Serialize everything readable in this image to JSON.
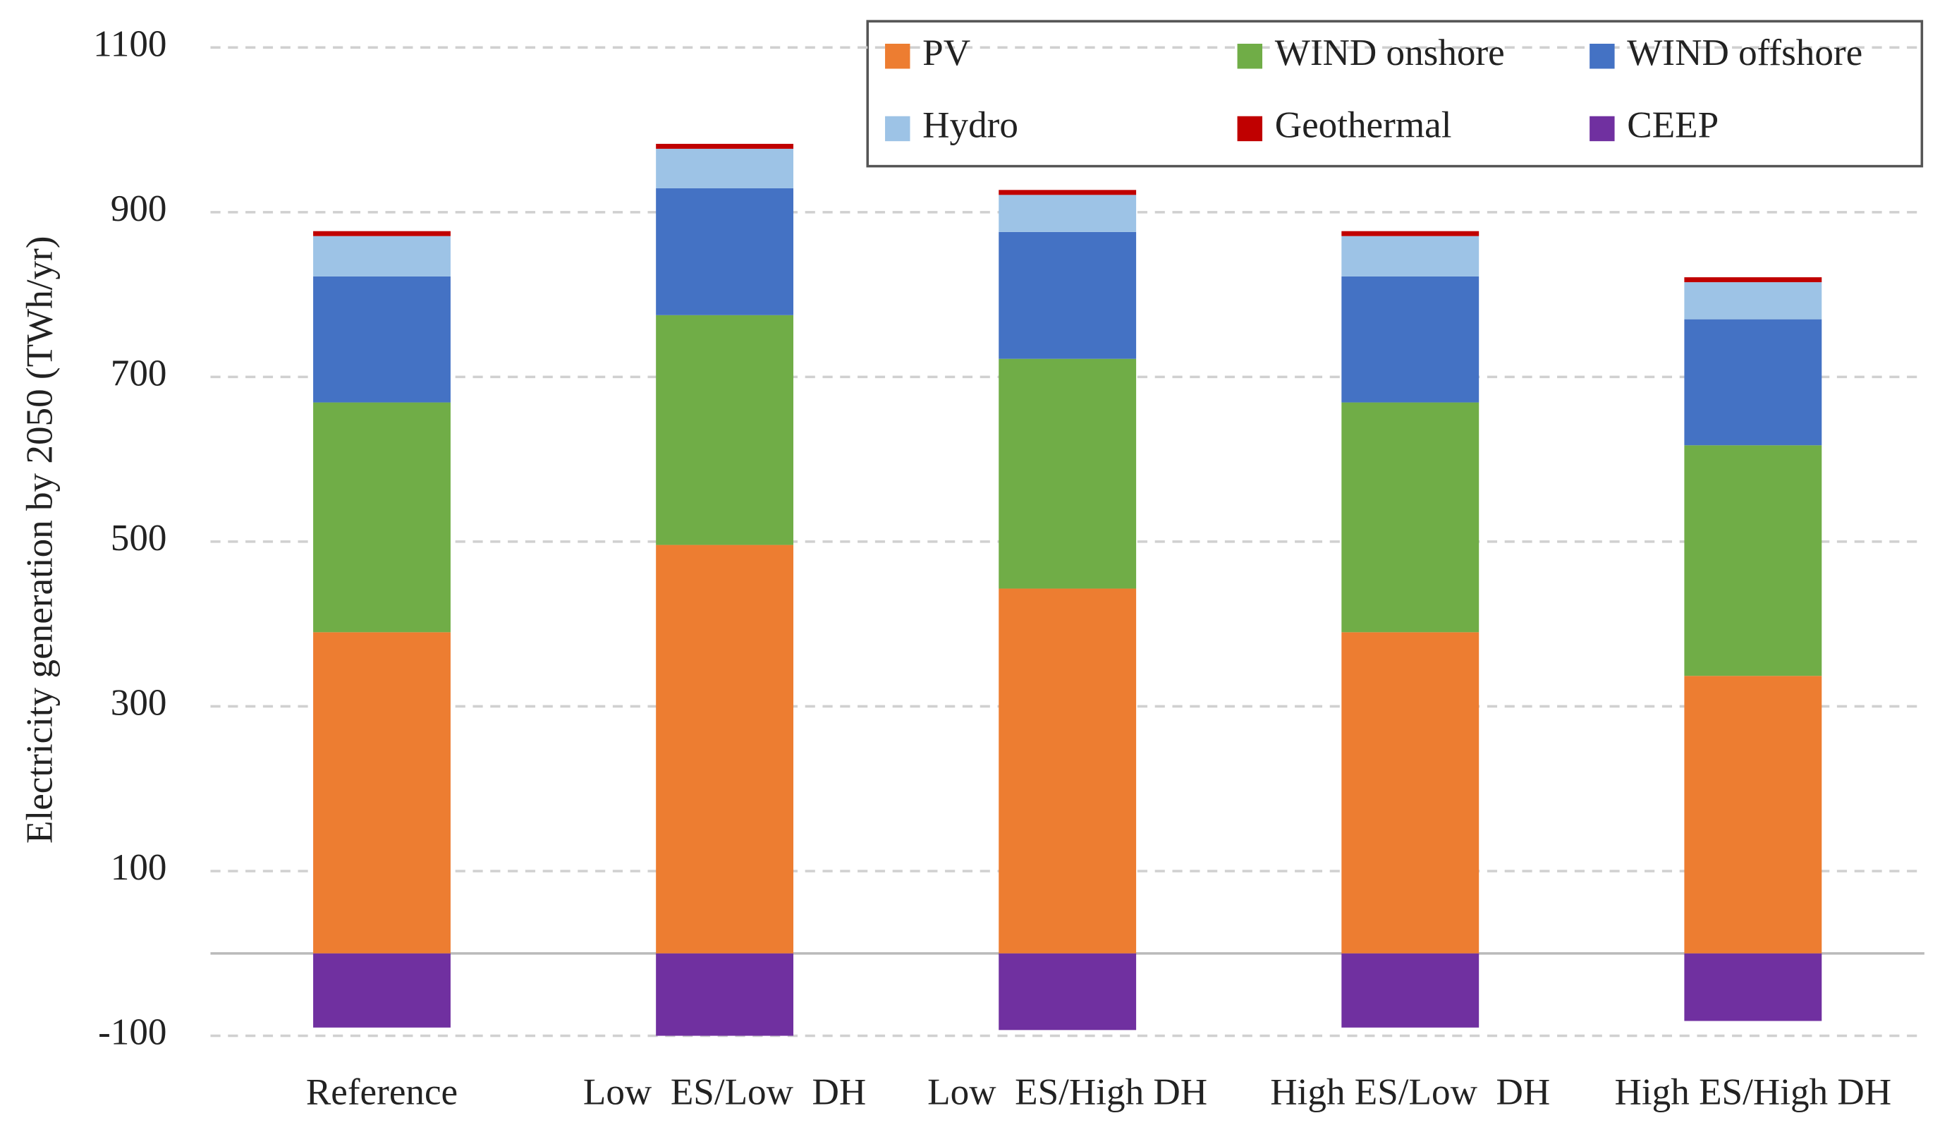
{
  "chart_data": {
    "type": "stacked_bar",
    "y_label": "Electricity generation by 2050 (TWh/yr)",
    "categories": [
      "Reference",
      "Low  ES/Low  DH",
      "Low  ES/High DH",
      "High ES/Low  DH",
      "High ES/High DH"
    ],
    "series": [
      {
        "name": "PV",
        "color": "#ed7d31",
        "values": [
          390,
          496,
          443,
          390,
          337
        ]
      },
      {
        "name": "WIND onshore",
        "color": "#70ad47",
        "values": [
          279,
          279,
          279,
          279,
          280
        ]
      },
      {
        "name": "WIND offshore",
        "color": "#4472c4",
        "values": [
          153,
          154,
          154,
          153,
          153
        ]
      },
      {
        "name": "Hydro",
        "color": "#9dc3e6",
        "values": [
          49,
          48,
          45,
          49,
          45
        ]
      },
      {
        "name": "Geothermal",
        "color": "#c00000",
        "values": [
          6,
          6,
          6,
          6,
          6
        ]
      },
      {
        "name": "CEEP",
        "color": "#7030a0",
        "values": [
          -90,
          -100,
          -93,
          -90,
          -82
        ]
      }
    ],
    "ylim": [
      -100,
      1100
    ],
    "yticks": [
      -100,
      100,
      300,
      500,
      700,
      900,
      1100
    ],
    "grid": true
  }
}
